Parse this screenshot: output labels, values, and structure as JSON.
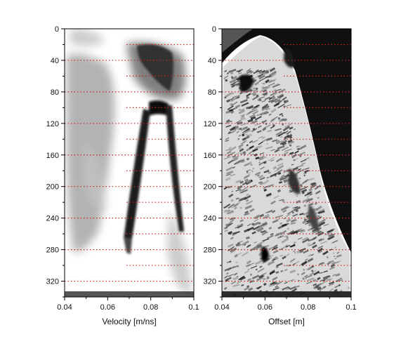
{
  "panels": [
    {
      "id": "velocity",
      "xlabel": "Velocity [m/ns]",
      "xticks": [
        "0.04",
        "0.06",
        "0.08",
        "0.1"
      ],
      "yticks": [
        "0",
        "40",
        "80",
        "120",
        "160",
        "200",
        "240",
        "280",
        "320"
      ]
    },
    {
      "id": "offset",
      "xlabel": "Offset [m]",
      "xticks": [
        "0.04",
        "0.06",
        "0.08",
        "0.1"
      ],
      "yticks": [
        "0",
        "40",
        "80",
        "120",
        "160",
        "200",
        "240",
        "280",
        "320"
      ]
    }
  ],
  "colors": {
    "gridline": "#cc2222",
    "image_dark": "#1a1a1a",
    "image_mid": "#8a8a8a"
  }
}
